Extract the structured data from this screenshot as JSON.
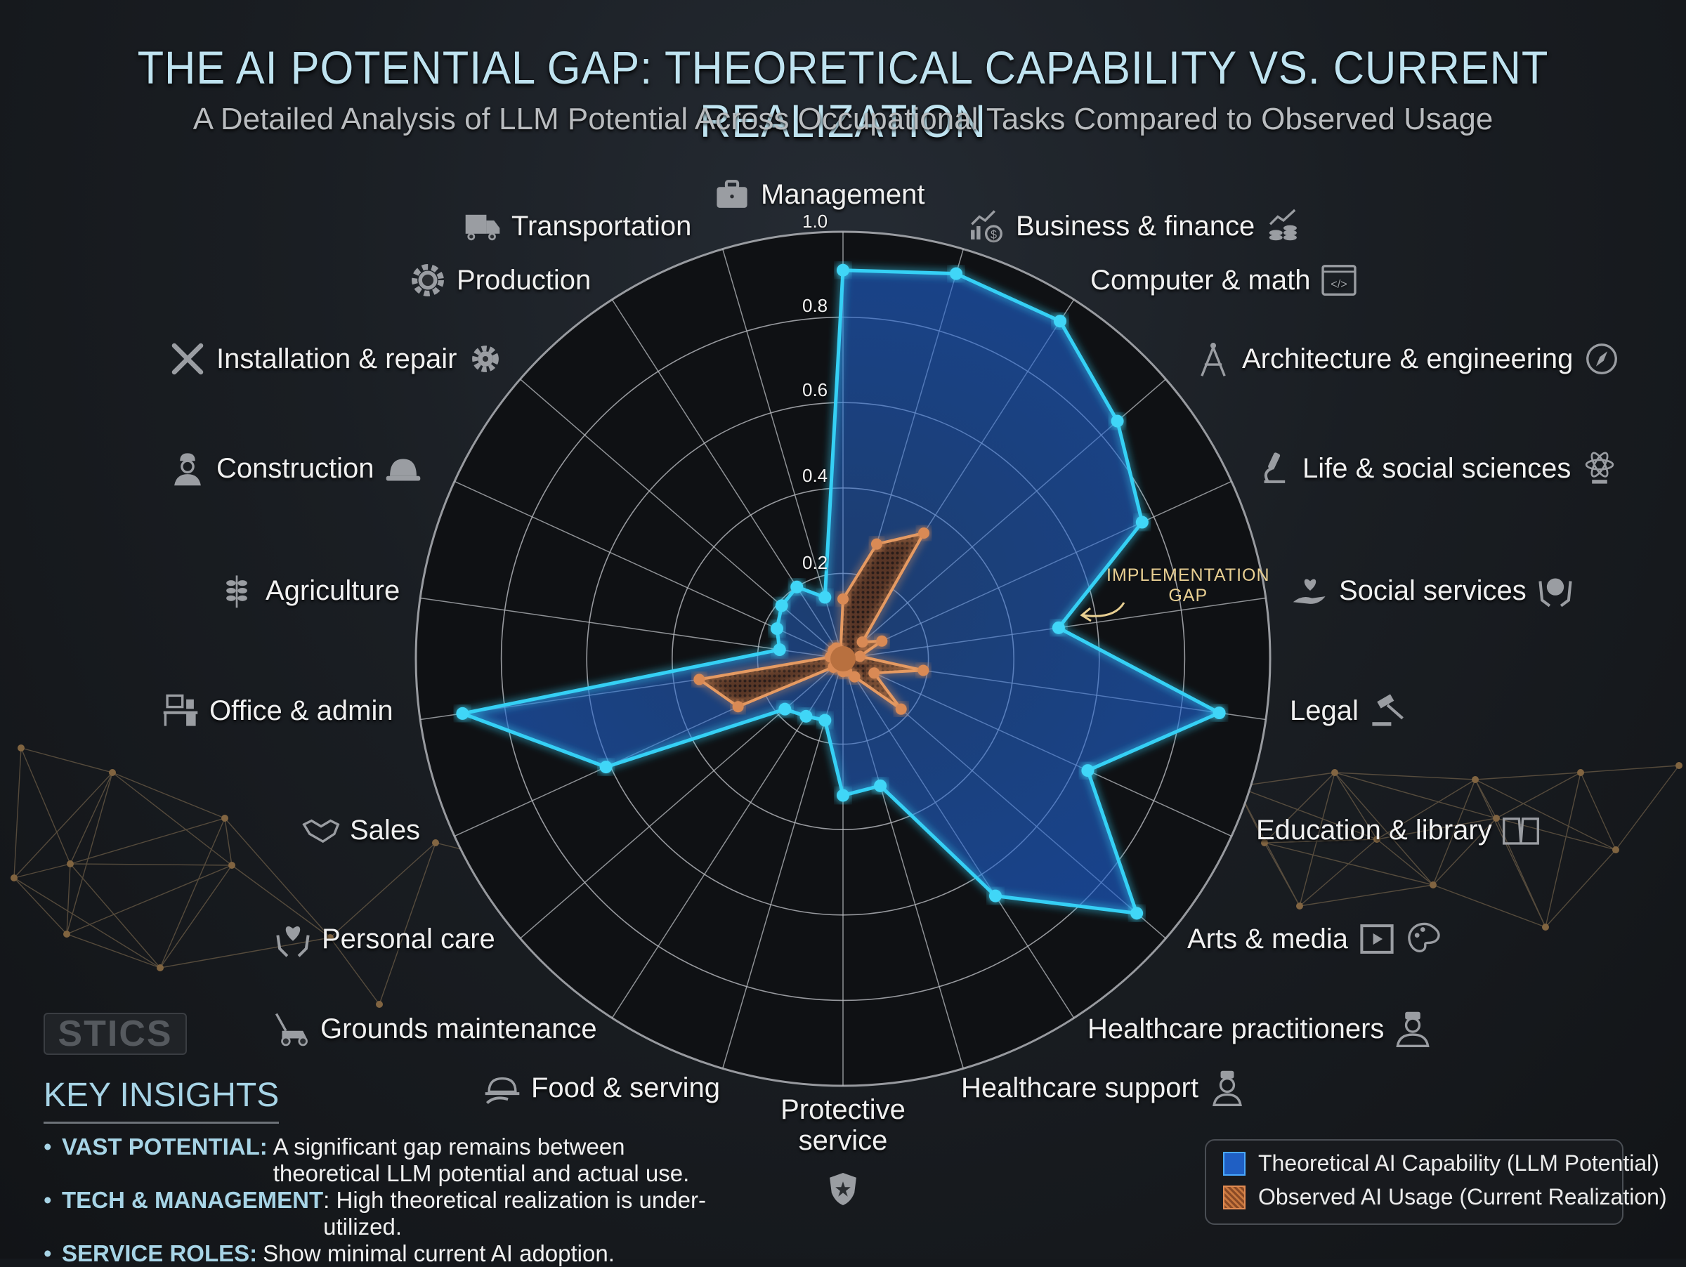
{
  "header": {
    "title": "THE AI POTENTIAL GAP: THEORETICAL CAPABILITY VS. CURRENT REALIZATION",
    "subtitle": "A Detailed Analysis of LLM Potential Across Occupational Tasks Compared to Observed Usage"
  },
  "annotation": {
    "line1": "IMPLEMENTATION",
    "line2": "GAP"
  },
  "logo": {
    "text": "STICS"
  },
  "insights": {
    "heading": "KEY INSIGHTS",
    "items": [
      {
        "key": "VAST POTENTIAL:",
        "text": "A significant gap remains between theoretical LLM potential and actual use."
      },
      {
        "key": "TECH & MANAGEMENT",
        "text": ": High theoretical realization is under-utilized."
      },
      {
        "key": "SERVICE ROLES:",
        "text": "Show minimal current AI adoption."
      }
    ]
  },
  "legend": {
    "items": [
      {
        "label": "Theoretical AI Capability (LLM Potential)",
        "color": "#1f5fc4"
      },
      {
        "label": "Observed AI Usage (Current Realization)",
        "color": "#c9783f"
      }
    ]
  },
  "colors": {
    "background": "#15181c",
    "theoretical_line": "#35d0f5",
    "theoretical_fill": "#1f5fc4",
    "observed_line": "#e59a62",
    "observed_fill": "#a85a2c",
    "grid": "#b9bcc0",
    "annotation": "#e8cf92"
  },
  "chart_data": {
    "type": "radar",
    "title": "THE AI POTENTIAL GAP: THEORETICAL CAPABILITY VS. CURRENT REALIZATION",
    "subtitle": "A Detailed Analysis of LLM Potential Across Occupational Tasks Compared to Observed Usage",
    "categories": [
      "Management",
      "Business & finance",
      "Computer & math",
      "Architecture & engineering",
      "Life & social sciences",
      "Social services",
      "Legal",
      "Education & library",
      "Arts & media",
      "Healthcare practitioners",
      "Healthcare support",
      "Protective service",
      "Food & serving",
      "Grounds maintenance",
      "Personal care",
      "Sales",
      "Office & admin",
      "Agriculture",
      "Construction",
      "Installation & repair",
      "Production",
      "Transportation"
    ],
    "series": [
      {
        "name": "Theoretical AI Capability (LLM Potential)",
        "values": [
          0.91,
          0.94,
          0.94,
          0.85,
          0.77,
          0.51,
          0.89,
          0.63,
          0.91,
          0.66,
          0.31,
          0.32,
          0.15,
          0.16,
          0.18,
          0.61,
          0.9,
          0.15,
          0.17,
          0.19,
          0.2,
          0.15
        ]
      },
      {
        "name": "Observed AI Usage (Current Realization)",
        "values": [
          0.14,
          0.28,
          0.35,
          0.06,
          0.1,
          0.04,
          0.19,
          0.08,
          0.18,
          0.05,
          0.03,
          0.03,
          0.02,
          0.02,
          0.03,
          0.27,
          0.34,
          0.03,
          0.02,
          0.03,
          0.03,
          0.02
        ]
      }
    ],
    "radial_ticks": [
      "0.2",
      "0.4",
      "0.6",
      "0.8",
      "1.0"
    ],
    "rlim": [
      0,
      1.0
    ],
    "grid": true,
    "legend_position": "bottom-right",
    "annotations": [
      "IMPLEMENTATION GAP (arrow pointing to Social services)"
    ]
  }
}
